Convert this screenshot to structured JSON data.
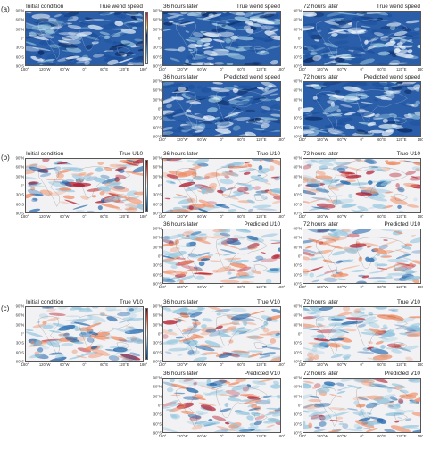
{
  "figure": {
    "groups": [
      {
        "label": "(a)",
        "variant": "speed",
        "panels": [
          {
            "left": "Initial condition",
            "right": "True wend speed",
            "colorbar": true
          },
          {
            "left": "36 hours later",
            "right": "True wend speed"
          },
          {
            "left": "72 hours later",
            "right": "True wend speed"
          },
          {
            "left": "36 hours later",
            "right": "Predicted wend speed"
          },
          {
            "left": "72 hours later",
            "right": "Predicted wend speed"
          }
        ]
      },
      {
        "label": "(b)",
        "variant": "u10",
        "panels": [
          {
            "left": "Initial condition",
            "right": "True U10",
            "colorbar": true
          },
          {
            "left": "36 hours later",
            "right": "True U10"
          },
          {
            "left": "72 hours later",
            "right": "True U10"
          },
          {
            "left": "36 hours later",
            "right": "Predicted U10"
          },
          {
            "left": "72 hours later",
            "right": "Predicted U10"
          }
        ]
      },
      {
        "label": "(c)",
        "variant": "v10",
        "panels": [
          {
            "left": "Initial condition",
            "right": "True V10",
            "colorbar": true
          },
          {
            "left": "36 hours later",
            "right": "True V10"
          },
          {
            "left": "72 hours later",
            "right": "True V10"
          },
          {
            "left": "36 hours later",
            "right": "Predicted V10"
          },
          {
            "left": "72 hours later",
            "right": "Predicted V10"
          }
        ]
      }
    ],
    "lon_ticks": [
      "180°",
      "120°W",
      "60°W",
      "0°",
      "60°E",
      "120°E",
      "180°"
    ],
    "lat_ticks": [
      "90°N",
      "60°N",
      "30°N",
      "0°",
      "30°S",
      "60°S",
      "90°S"
    ],
    "colors": {
      "speed_low": "#f5fbff",
      "speed_high": "#0b2a63",
      "diverging_neg": "#2171b5",
      "diverging_pos": "#d7301f"
    }
  }
}
